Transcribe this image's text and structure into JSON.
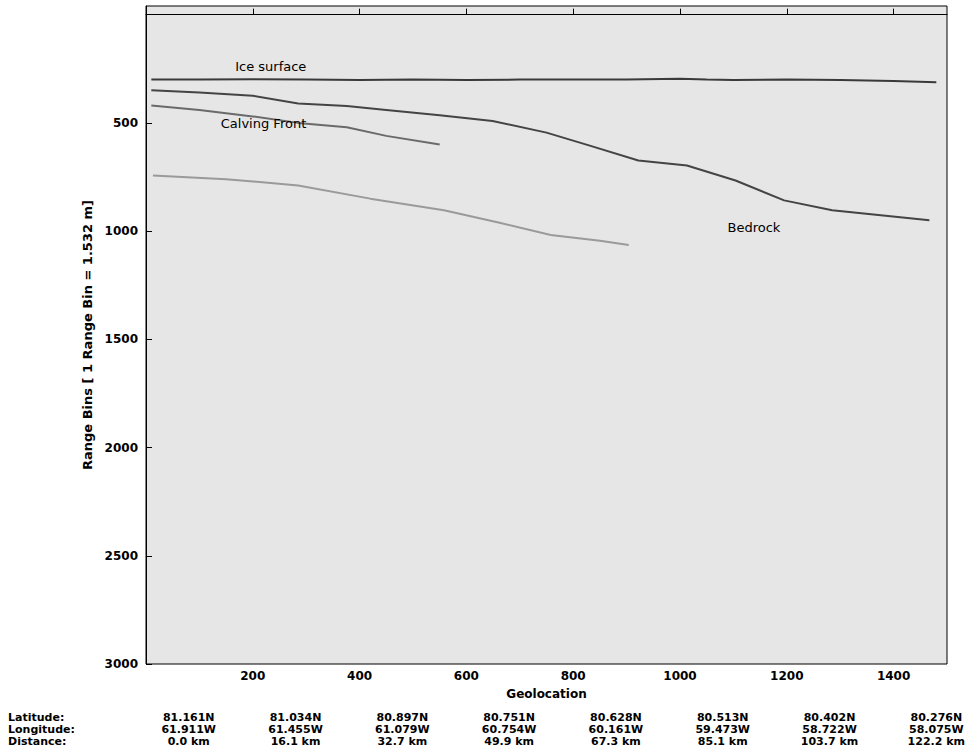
{
  "chart_data": {
    "type": "line",
    "x_label": "Geolocation",
    "y_label": "Range Bins [ 1 Range Bin = 1.532 m]",
    "xlim": [
      0,
      1500
    ],
    "ylim": [
      3000,
      -40
    ],
    "xticks": [
      200,
      400,
      600,
      800,
      1000,
      1200,
      1400
    ],
    "yticks": [
      500,
      1000,
      1500,
      2000,
      2500,
      3000
    ],
    "grid": false,
    "series": [
      {
        "x": [
          10,
          100,
          200,
          300,
          400,
          500,
          600,
          700,
          800,
          900,
          1000,
          1050,
          1100,
          1200,
          1300,
          1400,
          1480
        ],
        "values": [
          300,
          300,
          298,
          300,
          302,
          300,
          302,
          300,
          300,
          300,
          296,
          300,
          302,
          300,
          302,
          306,
          312
        ],
        "color": "#3a3a3a"
      },
      {
        "x": [
          10,
          100,
          200,
          285,
          376,
          450,
          550,
          649,
          750,
          831,
          922,
          1013,
          1104,
          1195,
          1285,
          1376,
          1467
        ],
        "values": [
          349,
          360,
          375,
          410,
          422,
          440,
          465,
          491,
          545,
          605,
          674,
          697,
          766,
          858,
          904,
          927,
          950
        ],
        "color": "#444444"
      },
      {
        "x": [
          10,
          100,
          200,
          285,
          376,
          450,
          550
        ],
        "values": [
          420,
          440,
          470,
          500,
          520,
          560,
          600
        ],
        "color": "#6a6a6a"
      },
      {
        "x": [
          13,
          150,
          285,
          420,
          558,
          660,
          758,
          850,
          904
        ],
        "values": [
          743,
          760,
          789,
          850,
          904,
          960,
          1018,
          1045,
          1064
        ],
        "color": "#9a9a9a"
      }
    ],
    "annotations": [
      {
        "text": "Ice surface",
        "x": 167,
        "y": 239
      },
      {
        "text": "Calving Front",
        "x": 140,
        "y": 505
      },
      {
        "text": "Bedrock",
        "x": 1089,
        "y": 982
      }
    ],
    "geolocation_table": {
      "row_labels": [
        "Latitude:",
        "Longitude:",
        "Distance:"
      ],
      "x": [
        80,
        280,
        480,
        680,
        880,
        1080,
        1280,
        1480
      ],
      "latitude": [
        "81.161N",
        "81.034N",
        "80.897N",
        "80.751N",
        "80.628N",
        "80.513N",
        "80.402N",
        "80.276N"
      ],
      "longitude": [
        "61.911W",
        "61.455W",
        "61.079W",
        "60.754W",
        "60.161W",
        "59.473W",
        "58.722W",
        "58.075W"
      ],
      "distance": [
        "0.0 km",
        "16.1 km",
        "32.7 km",
        "49.9 km",
        "67.3 km",
        "85.1 km",
        "103.7 km",
        "122.2 km"
      ]
    }
  }
}
